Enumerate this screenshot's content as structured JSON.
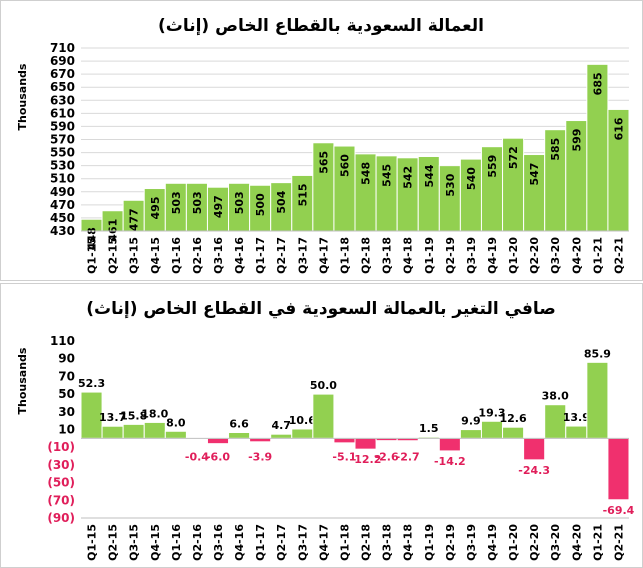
{
  "colors": {
    "positive": "#92d050",
    "negative": "#f0306e",
    "negative_text": "#e01e5a",
    "bar_stroke": "#ffffff"
  },
  "chart_data": [
    {
      "type": "bar",
      "title": "العمالة السعودية بالقطاع الخاص (إناث)",
      "ylabel": "Thousands",
      "xlabel": "",
      "ylim": [
        430,
        710
      ],
      "yticks": [
        "430",
        "450",
        "470",
        "490",
        "510",
        "530",
        "550",
        "570",
        "590",
        "610",
        "630",
        "650",
        "670",
        "690",
        "710"
      ],
      "grid": true,
      "categories": [
        "Q1-15",
        "Q2-15",
        "Q3-15",
        "Q4-15",
        "Q1-16",
        "Q2-16",
        "Q3-16",
        "Q4-16",
        "Q1-17",
        "Q2-17",
        "Q3-17",
        "Q4-17",
        "Q1-18",
        "Q2-18",
        "Q3-18",
        "Q4-18",
        "Q1-19",
        "Q2-19",
        "Q3-19",
        "Q4-19",
        "Q1-20",
        "Q2-20",
        "Q3-20",
        "Q4-20",
        "Q1-21",
        "Q2-21"
      ],
      "values": [
        448,
        461,
        477,
        495,
        503,
        503,
        497,
        503,
        500,
        504,
        515,
        565,
        560,
        548,
        545,
        542,
        544,
        530,
        540,
        559,
        572,
        547,
        585,
        599,
        685,
        616
      ],
      "data_labels": [
        "448",
        "461",
        "477",
        "495",
        "503",
        "503",
        "497",
        "503",
        "500",
        "504",
        "515",
        "565",
        "560",
        "548",
        "545",
        "542",
        "544",
        "530",
        "540",
        "559",
        "572",
        "547",
        "585",
        "599",
        "685",
        "616"
      ]
    },
    {
      "type": "bar",
      "title": "صافي التغير بالعمالة السعودية في القطاع الخاص (إناث)",
      "ylabel": "Thousands",
      "xlabel": "",
      "ylim": [
        -90,
        110
      ],
      "yticks": [
        "(90)",
        "(70)",
        "(50)",
        "(30)",
        "(10)",
        "10",
        "30",
        "50",
        "70",
        "90",
        "110"
      ],
      "grid": false,
      "categories": [
        "Q1-15",
        "Q2-15",
        "Q3-15",
        "Q4-15",
        "Q1-16",
        "Q2-16",
        "Q3-16",
        "Q4-16",
        "Q1-17",
        "Q2-17",
        "Q3-17",
        "Q4-17",
        "Q1-18",
        "Q2-18",
        "Q3-18",
        "Q4-18",
        "Q1-19",
        "Q2-19",
        "Q3-19",
        "Q4-19",
        "Q1-20",
        "Q2-20",
        "Q3-20",
        "Q4-20",
        "Q1-21",
        "Q2-21"
      ],
      "values": [
        52.3,
        13.7,
        15.8,
        18.0,
        8.0,
        -0.4,
        -6.0,
        6.6,
        -3.9,
        4.7,
        10.6,
        50.0,
        -5.1,
        -12.2,
        -2.6,
        -2.7,
        1.5,
        -14.2,
        9.9,
        19.3,
        12.6,
        -24.3,
        38.0,
        13.9,
        85.9,
        -69.4
      ],
      "data_labels": [
        "52.3",
        "13.7",
        "15.8",
        "18.0",
        "8.0",
        "-0.4",
        "-6.0",
        "6.6",
        "-3.9",
        "4.7",
        "10.6",
        "50.0",
        "-5.1",
        "-12.2",
        "-2.6",
        "-2.7",
        "1.5",
        "-14.2",
        "9.9",
        "19.3",
        "12.6",
        "-24.3",
        "38.0",
        "13.9",
        "85.9",
        "-69.4"
      ]
    }
  ]
}
